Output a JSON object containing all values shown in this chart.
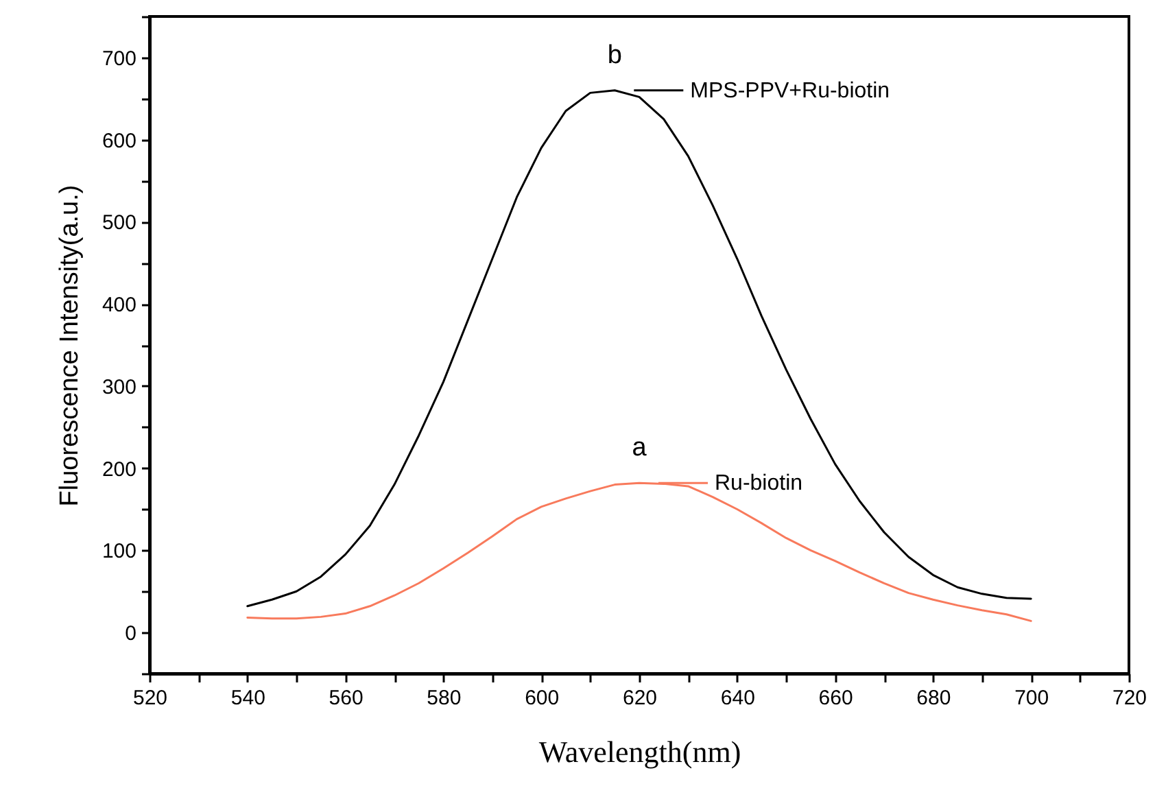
{
  "chart_data": {
    "type": "line",
    "xlabel": "Wavelength(nm)",
    "ylabel": "Fluorescence Intensity(a.u.)",
    "x": [
      540,
      545,
      550,
      555,
      560,
      565,
      570,
      575,
      580,
      585,
      590,
      595,
      600,
      605,
      610,
      615,
      620,
      625,
      630,
      635,
      640,
      645,
      650,
      655,
      660,
      665,
      670,
      675,
      680,
      685,
      690,
      695,
      700
    ],
    "series": [
      {
        "name": "MPS-PPV+Ru-biotin",
        "color": "#000000",
        "values": [
          32,
          40,
          50,
          68,
          95,
          130,
          180,
          240,
          305,
          380,
          455,
          530,
          590,
          635,
          657,
          660,
          652,
          625,
          580,
          520,
          455,
          385,
          320,
          260,
          205,
          160,
          122,
          92,
          70,
          55,
          47,
          42,
          41
        ]
      },
      {
        "name": "Ru-biotin",
        "color": "#f87a5c",
        "values": [
          18,
          17,
          17,
          19,
          23,
          32,
          45,
          60,
          78,
          97,
          117,
          138,
          153,
          163,
          172,
          180,
          182,
          181,
          178,
          165,
          150,
          133,
          115,
          100,
          87,
          73,
          60,
          48,
          40,
          33,
          27,
          22,
          14
        ]
      }
    ],
    "annotations": [
      "b",
      "a"
    ],
    "xlim": [
      520,
      720
    ],
    "ylim": [
      -50,
      750
    ],
    "xticks": [
      520,
      {
        "value": 530,
        "label": null
      },
      540,
      {
        "value": 550,
        "label": null
      },
      560,
      {
        "value": 570,
        "label": null
      },
      580,
      {
        "value": 590,
        "label": null
      },
      600,
      {
        "value": 610,
        "label": null
      },
      620,
      {
        "value": 630,
        "label": null
      },
      640,
      {
        "value": 650,
        "label": null
      },
      660,
      {
        "value": 670,
        "label": null
      },
      680,
      {
        "value": 690,
        "label": null
      },
      700,
      {
        "value": 710,
        "label": null
      },
      720
    ],
    "yticks": [
      {
        "value": -50,
        "label": null
      },
      0,
      {
        "value": 50,
        "label": null
      },
      100,
      {
        "value": 150,
        "label": null
      },
      200,
      {
        "value": 250,
        "label": null
      },
      300,
      {
        "value": 350,
        "label": null
      },
      400,
      {
        "value": 450,
        "label": null
      },
      500,
      {
        "value": 550,
        "label": null
      },
      600,
      {
        "value": 650,
        "label": null
      },
      700,
      {
        "value": 750,
        "label": null
      }
    ],
    "grid": false,
    "legend": "top right",
    "marker": "none",
    "line_style": "solid"
  }
}
